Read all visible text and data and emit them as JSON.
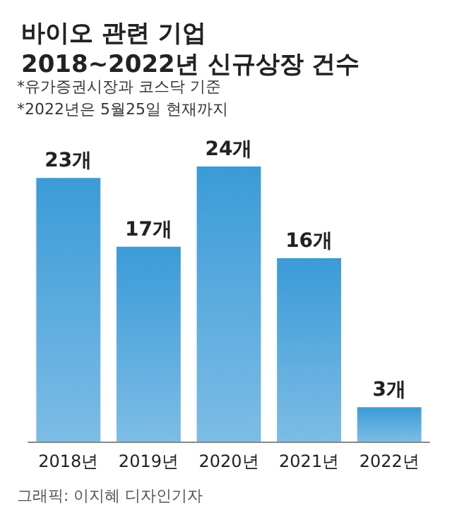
{
  "chart_data": {
    "type": "bar",
    "title": "바이오 관련 기업\n2018~2022년 신규상장 건수",
    "categories": [
      "2018년",
      "2019년",
      "2020년",
      "2021년",
      "2022년"
    ],
    "values": [
      23,
      17,
      24,
      16,
      3
    ],
    "value_labels": [
      "23개",
      "17개",
      "24개",
      "16개",
      "3개"
    ],
    "color": "#3b9bd8",
    "annotations": [
      "*유가증권시장과 코스닥 기준",
      "*2022년은 5월25일 현재까지",
      "그래픽: 이지혜 디자인기자"
    ]
  }
}
